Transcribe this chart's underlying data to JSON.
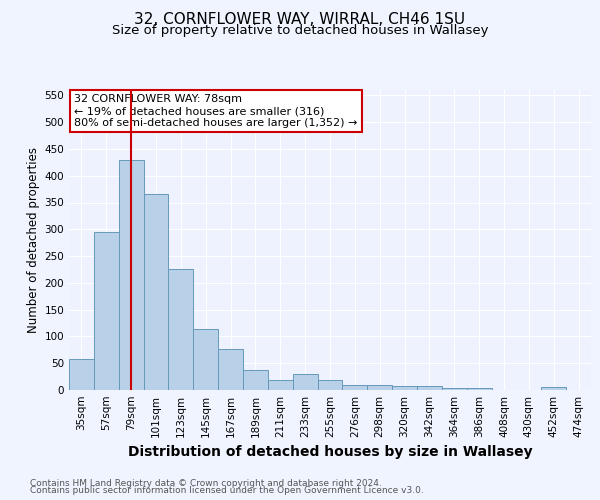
{
  "title": "32, CORNFLOWER WAY, WIRRAL, CH46 1SU",
  "subtitle": "Size of property relative to detached houses in Wallasey",
  "xlabel": "Distribution of detached houses by size in Wallasey",
  "ylabel": "Number of detached properties",
  "footnote1": "Contains HM Land Registry data © Crown copyright and database right 2024.",
  "footnote2": "Contains public sector information licensed under the Open Government Licence v3.0.",
  "bar_labels": [
    "35sqm",
    "57sqm",
    "79sqm",
    "101sqm",
    "123sqm",
    "145sqm",
    "167sqm",
    "189sqm",
    "211sqm",
    "233sqm",
    "255sqm",
    "276sqm",
    "298sqm",
    "320sqm",
    "342sqm",
    "364sqm",
    "386sqm",
    "408sqm",
    "430sqm",
    "452sqm",
    "474sqm"
  ],
  "bar_values": [
    57,
    295,
    430,
    365,
    225,
    113,
    76,
    37,
    18,
    29,
    18,
    10,
    10,
    8,
    7,
    4,
    4,
    0,
    0,
    5,
    0
  ],
  "bar_color": "#b8d0e8",
  "bar_edge_color": "#6699bb",
  "ylim": [
    0,
    560
  ],
  "yticks": [
    0,
    50,
    100,
    150,
    200,
    250,
    300,
    350,
    400,
    450,
    500,
    550
  ],
  "vline_x": 2,
  "vline_color": "#cc0000",
  "annotation_text": "32 CORNFLOWER WAY: 78sqm\n← 19% of detached houses are smaller (316)\n80% of semi-detached houses are larger (1,352) →",
  "annotation_box_color": "#ffffff",
  "annotation_box_edge_color": "#cc0000",
  "bg_color": "#f0f4ff",
  "plot_bg_color": "#eef2ff",
  "grid_color": "#ffffff",
  "title_fontsize": 11,
  "subtitle_fontsize": 9.5,
  "xlabel_fontsize": 10,
  "ylabel_fontsize": 8.5,
  "tick_fontsize": 7.5,
  "annotation_fontsize": 8,
  "footnote_fontsize": 6.5
}
